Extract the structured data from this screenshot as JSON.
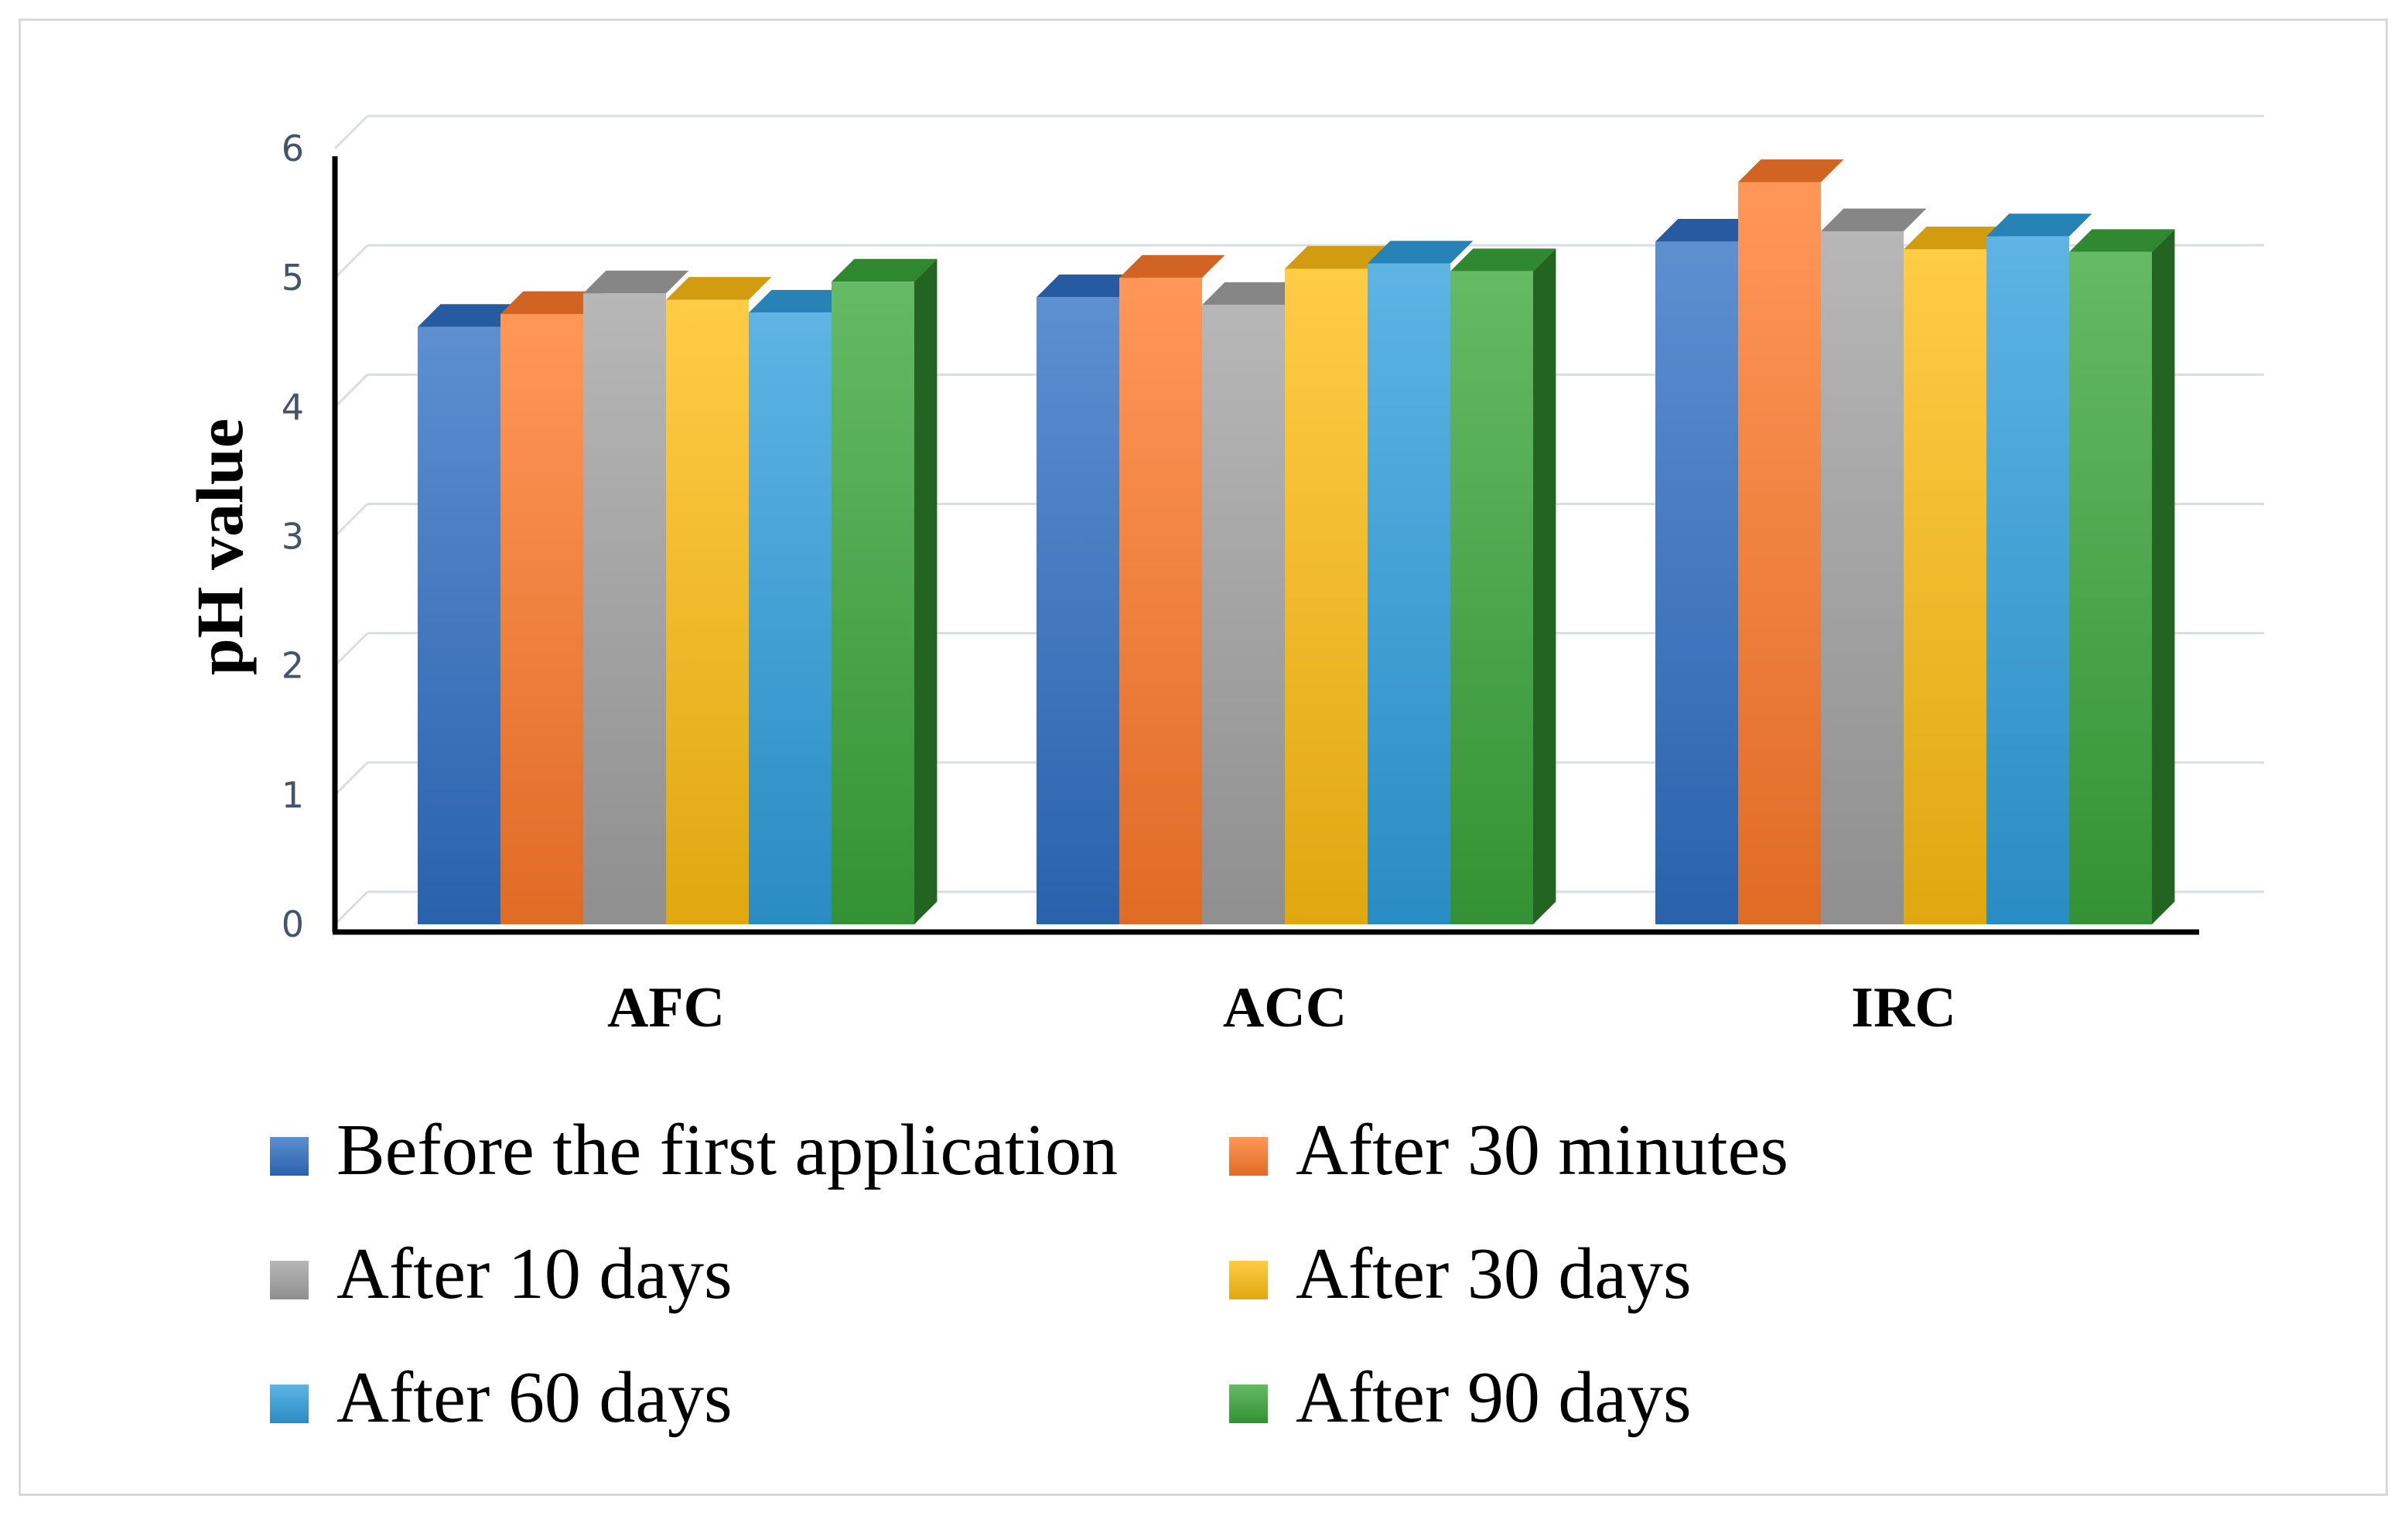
{
  "chart_data": {
    "type": "bar",
    "style": "3d-clustered-column",
    "ylabel": "pH value",
    "xlabel": "",
    "ylim": [
      0,
      6
    ],
    "yticks": [
      "0",
      "1",
      "2",
      "3",
      "4",
      "5",
      "6"
    ],
    "grid": true,
    "legend_position": "bottom",
    "categories": [
      "AFC",
      "ACC",
      "IRC"
    ],
    "series": [
      {
        "name": "Before the first application",
        "color": "#2f6fc4",
        "values": [
          4.62,
          4.85,
          5.28
        ]
      },
      {
        "name": "After 30 minutes",
        "color": "#ff7a2a",
        "values": [
          4.72,
          5.0,
          5.74
        ]
      },
      {
        "name": "After 10 days",
        "color": "#a3a3a3",
        "values": [
          4.88,
          4.79,
          5.36
        ]
      },
      {
        "name": "After 30 days",
        "color": "#ffbe12",
        "values": [
          4.83,
          5.07,
          5.22
        ]
      },
      {
        "name": "After 60 days",
        "color": "#2f9fde",
        "values": [
          4.73,
          5.11,
          5.32
        ]
      },
      {
        "name": "After 90 days",
        "color": "#3aa63a",
        "values": [
          4.97,
          5.05,
          5.2
        ]
      }
    ]
  }
}
